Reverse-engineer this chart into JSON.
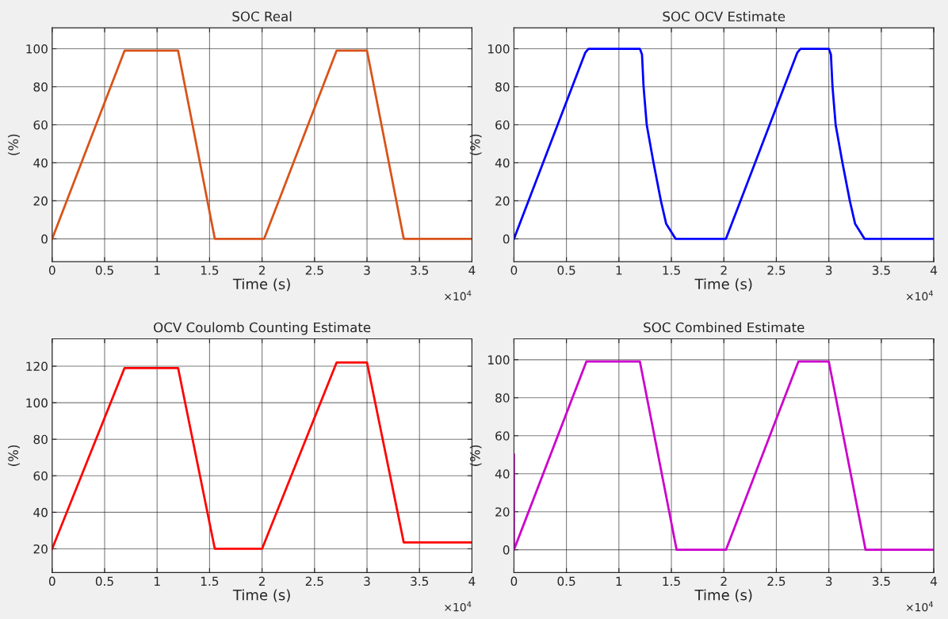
{
  "chart_data": [
    {
      "type": "line",
      "title": "SOC Real",
      "xlabel": "Time (s)",
      "ylabel": "(%)",
      "annotations": [
        "×10$^{4}$"
      ],
      "grid": true,
      "xlim": [
        0,
        4
      ],
      "ylim": [
        -12,
        111
      ],
      "xticks": [
        0,
        0.5,
        1,
        1.5,
        2,
        2.5,
        3,
        3.5,
        4
      ],
      "yticks": [
        0,
        20,
        40,
        60,
        80,
        100
      ],
      "series": [
        {
          "color": "#d95319",
          "x": [
            0,
            0.69,
            1.2,
            1.55,
            2.02,
            2.71,
            3.0,
            3.35,
            4.0
          ],
          "values": [
            0,
            99,
            99,
            0,
            0,
            99,
            99,
            0,
            0
          ]
        }
      ]
    },
    {
      "type": "line",
      "title": "SOC OCV Estimate",
      "xlabel": "Time (s)",
      "ylabel": "(%)",
      "annotations": [
        "×10$^{4}$"
      ],
      "grid": true,
      "xlim": [
        0,
        4
      ],
      "ylim": [
        -12,
        111
      ],
      "xticks": [
        0,
        0.5,
        1,
        1.5,
        2,
        2.5,
        3,
        3.5,
        4
      ],
      "yticks": [
        0,
        20,
        40,
        60,
        80,
        100
      ],
      "series": [
        {
          "color": "#0000ff",
          "x": [
            0,
            0.68,
            0.71,
            1.2,
            1.22,
            1.235,
            1.265,
            1.33,
            1.4,
            1.45,
            1.54,
            2.02,
            2.7,
            2.73,
            3.0,
            3.02,
            3.035,
            3.065,
            3.13,
            3.2,
            3.25,
            3.34,
            4.0
          ],
          "values": [
            0,
            98,
            100,
            100,
            97,
            80,
            60,
            40,
            20,
            8,
            0,
            0,
            98,
            100,
            100,
            97,
            80,
            60,
            40,
            20,
            8,
            0,
            0
          ]
        }
      ]
    },
    {
      "type": "line",
      "title": "OCV Coulomb Counting Estimate",
      "xlabel": "Time (s)",
      "ylabel": "(%)",
      "annotations": [
        "×10$^{4}$"
      ],
      "grid": true,
      "xlim": [
        0,
        4
      ],
      "ylim": [
        7,
        135
      ],
      "xticks": [
        0,
        0.5,
        1,
        1.5,
        2,
        2.5,
        3,
        3.5,
        4
      ],
      "yticks": [
        20,
        40,
        60,
        80,
        100,
        120
      ],
      "series": [
        {
          "color": "#ff0000",
          "x": [
            0,
            0.69,
            1.2,
            1.55,
            2.0,
            2.71,
            3.0,
            3.35,
            4.0
          ],
          "values": [
            20,
            119,
            119,
            20,
            20,
            122,
            122,
            23.5,
            23.5
          ]
        }
      ]
    },
    {
      "type": "line",
      "title": "SOC Combined Estimate",
      "xlabel": "Time (s)",
      "ylabel": "(%)",
      "annotations": [
        "×10$^{4}$"
      ],
      "grid": true,
      "xlim": [
        0,
        4
      ],
      "ylim": [
        -12,
        111
      ],
      "xticks": [
        0,
        0.5,
        1,
        1.5,
        2,
        2.5,
        3,
        3.5,
        4
      ],
      "yticks": [
        0,
        20,
        40,
        60,
        80,
        100
      ],
      "series": [
        {
          "color": "#cc00cc",
          "x": [
            0,
            0,
            0.69,
            1.2,
            1.55,
            2.02,
            2.71,
            3.0,
            3.35,
            4.0
          ],
          "values": [
            50,
            0,
            99,
            99,
            0,
            0,
            99,
            99,
            0,
            0
          ]
        }
      ]
    }
  ]
}
